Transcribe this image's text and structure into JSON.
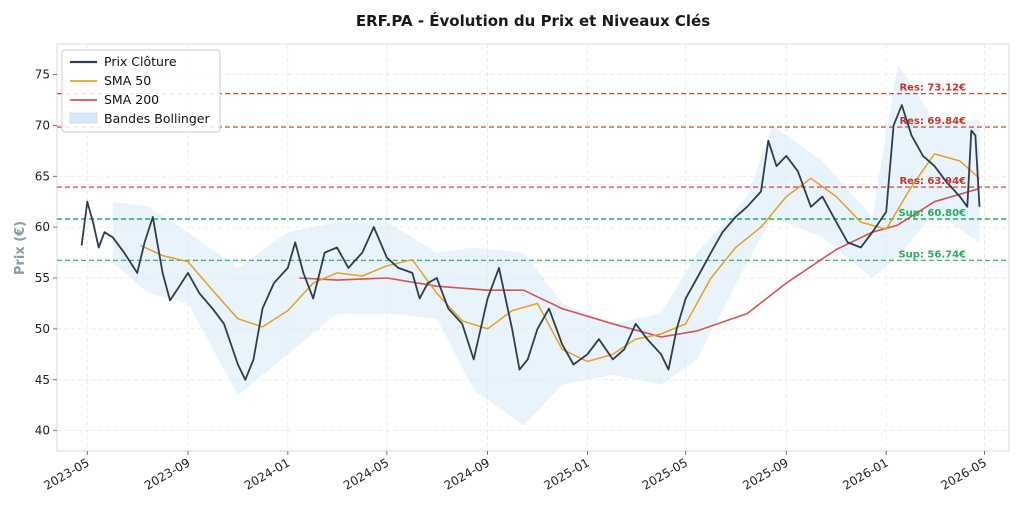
{
  "chart_data": {
    "type": "line",
    "title": "ERF.PA - Évolution du Prix et Niveaux Clés",
    "ylabel": "Prix (€)",
    "xlabel": "",
    "ylim": [
      38,
      78
    ],
    "xlim": [
      "2023-03-25",
      "2026-05-31"
    ],
    "grid": true,
    "legend_position": "top-left",
    "y_ticks": [
      40,
      45,
      50,
      55,
      60,
      65,
      70,
      75
    ],
    "x_ticks": [
      "2023-05",
      "2023-09",
      "2024-01",
      "2024-05",
      "2024-09",
      "2025-01",
      "2025-05",
      "2025-09",
      "2026-01",
      "2026-05"
    ],
    "colors": {
      "price": "#2c3e50",
      "sma50": "#e8a020",
      "sma200": "#d9534f",
      "bollinger": "#d6eaf8",
      "support": "#27ae60",
      "resistance": "#c0392b"
    },
    "series": [
      {
        "name": "Prix Clôture",
        "key": "price",
        "x": [
          "2023-04-24",
          "2023-05-01",
          "2023-05-08",
          "2023-05-15",
          "2023-05-22",
          "2023-06-01",
          "2023-06-15",
          "2023-07-01",
          "2023-07-10",
          "2023-07-20",
          "2023-08-01",
          "2023-08-10",
          "2023-08-20",
          "2023-09-01",
          "2023-09-15",
          "2023-10-01",
          "2023-10-15",
          "2023-11-01",
          "2023-11-10",
          "2023-11-20",
          "2023-12-01",
          "2023-12-15",
          "2024-01-01",
          "2024-01-10",
          "2024-01-20",
          "2024-02-01",
          "2024-02-15",
          "2024-03-01",
          "2024-03-15",
          "2024-04-01",
          "2024-04-15",
          "2024-05-01",
          "2024-05-15",
          "2024-06-01",
          "2024-06-10",
          "2024-06-20",
          "2024-07-01",
          "2024-07-15",
          "2024-08-01",
          "2024-08-15",
          "2024-09-01",
          "2024-09-15",
          "2024-10-01",
          "2024-10-10",
          "2024-10-20",
          "2024-11-01",
          "2024-11-15",
          "2024-12-01",
          "2024-12-15",
          "2025-01-01",
          "2025-01-15",
          "2025-02-01",
          "2025-02-15",
          "2025-03-01",
          "2025-03-15",
          "2025-04-01",
          "2025-04-10",
          "2025-04-20",
          "2025-05-01",
          "2025-05-15",
          "2025-06-01",
          "2025-06-15",
          "2025-07-01",
          "2025-07-15",
          "2025-08-01",
          "2025-08-10",
          "2025-08-20",
          "2025-09-01",
          "2025-09-15",
          "2025-10-01",
          "2025-10-15",
          "2025-11-01",
          "2025-11-15",
          "2025-12-01",
          "2025-12-15",
          "2026-01-01",
          "2026-01-10",
          "2026-01-20",
          "2026-02-01",
          "2026-02-15",
          "2026-03-01",
          "2026-03-15",
          "2026-04-01",
          "2026-04-10",
          "2026-04-15",
          "2026-04-20",
          "2026-04-25"
        ],
        "values": [
          58.2,
          62.5,
          60.5,
          58.0,
          59.5,
          59.0,
          57.5,
          55.5,
          58.5,
          61.0,
          55.5,
          52.8,
          54.0,
          55.5,
          53.5,
          52.0,
          50.5,
          46.5,
          45.0,
          47.0,
          52.0,
          54.5,
          56.0,
          58.5,
          55.5,
          53.0,
          57.5,
          58.0,
          56.0,
          57.5,
          60.0,
          57.0,
          56.0,
          55.5,
          53.0,
          54.5,
          55.0,
          52.0,
          50.5,
          47.0,
          53.0,
          56.0,
          50.0,
          46.0,
          47.0,
          50.0,
          52.0,
          48.5,
          46.5,
          47.5,
          49.0,
          47.0,
          48.0,
          50.5,
          49.0,
          47.5,
          46.0,
          50.0,
          53.0,
          55.0,
          57.5,
          59.5,
          61.0,
          62.0,
          63.5,
          68.5,
          66.0,
          67.0,
          65.5,
          62.0,
          63.0,
          60.5,
          58.5,
          58.0,
          59.5,
          61.5,
          70.0,
          72.0,
          69.0,
          67.0,
          66.0,
          64.5,
          63.0,
          62.0,
          69.5,
          69.0,
          62.0
        ]
      },
      {
        "name": "SMA 50",
        "key": "sma50",
        "x": [
          "2023-07-05",
          "2023-08-01",
          "2023-09-01",
          "2023-10-01",
          "2023-11-01",
          "2023-12-01",
          "2024-01-01",
          "2024-02-01",
          "2024-03-01",
          "2024-04-01",
          "2024-05-01",
          "2024-06-01",
          "2024-07-01",
          "2024-08-01",
          "2024-09-01",
          "2024-10-01",
          "2024-11-01",
          "2024-12-01",
          "2025-01-01",
          "2025-02-01",
          "2025-03-01",
          "2025-04-01",
          "2025-05-01",
          "2025-06-01",
          "2025-07-01",
          "2025-08-01",
          "2025-09-01",
          "2025-10-01",
          "2025-11-01",
          "2025-12-01",
          "2026-01-01",
          "2026-02-01",
          "2026-03-01",
          "2026-04-01",
          "2026-04-25"
        ],
        "values": [
          58.2,
          57.2,
          56.6,
          53.8,
          51.0,
          50.2,
          51.8,
          54.5,
          55.5,
          55.2,
          56.2,
          56.8,
          53.5,
          50.8,
          50.0,
          51.8,
          52.5,
          48.0,
          46.8,
          47.5,
          49.0,
          49.5,
          50.5,
          55.0,
          58.0,
          60.0,
          63.0,
          64.8,
          63.0,
          60.5,
          59.8,
          64.0,
          67.2,
          66.5,
          64.8
        ]
      },
      {
        "name": "SMA 200",
        "key": "sma200",
        "x": [
          "2024-01-15",
          "2024-03-01",
          "2024-05-01",
          "2024-07-01",
          "2024-09-01",
          "2024-10-15",
          "2024-12-01",
          "2025-02-01",
          "2025-04-01",
          "2025-05-15",
          "2025-07-15",
          "2025-09-01",
          "2025-11-01",
          "2025-12-15",
          "2026-01-15",
          "2026-03-01",
          "2026-04-25"
        ],
        "values": [
          55.0,
          54.8,
          55.0,
          54.2,
          53.8,
          53.8,
          52.0,
          50.5,
          49.2,
          49.8,
          51.5,
          54.5,
          57.8,
          59.5,
          60.2,
          62.5,
          63.8
        ]
      },
      {
        "name": "Bandes Bollinger",
        "key": "bollinger",
        "x": [
          "2023-06-01",
          "2023-07-15",
          "2023-09-01",
          "2023-11-01",
          "2024-01-01",
          "2024-03-01",
          "2024-05-01",
          "2024-07-01",
          "2024-08-15",
          "2024-10-15",
          "2024-12-01",
          "2025-02-01",
          "2025-04-01",
          "2025-05-15",
          "2025-07-15",
          "2025-08-15",
          "2025-10-15",
          "2025-12-15",
          "2026-01-15",
          "2026-03-01",
          "2026-04-25"
        ],
        "upper": [
          62.5,
          62.0,
          59.5,
          56.0,
          59.5,
          60.5,
          60.5,
          57.5,
          58.0,
          57.5,
          52.5,
          50.5,
          51.5,
          57.5,
          63.0,
          70.0,
          66.5,
          61.0,
          76.0,
          70.5,
          70.5
        ],
        "lower": [
          56.5,
          53.5,
          52.5,
          43.5,
          47.5,
          51.5,
          51.5,
          51.0,
          44.0,
          40.5,
          44.5,
          45.5,
          44.5,
          47.0,
          56.5,
          61.0,
          59.0,
          55.0,
          57.0,
          61.5,
          58.5
        ]
      }
    ],
    "support_levels": [
      {
        "label": "Sup: 60.80€",
        "value": 60.8
      },
      {
        "label": "Sup: 56.74€",
        "value": 56.74
      }
    ],
    "resistance_levels": [
      {
        "label": "Res: 73.12€",
        "value": 73.12
      },
      {
        "label": "Res: 69.84€",
        "value": 69.84
      },
      {
        "label": "Res: 63.94€",
        "value": 63.94
      }
    ]
  }
}
